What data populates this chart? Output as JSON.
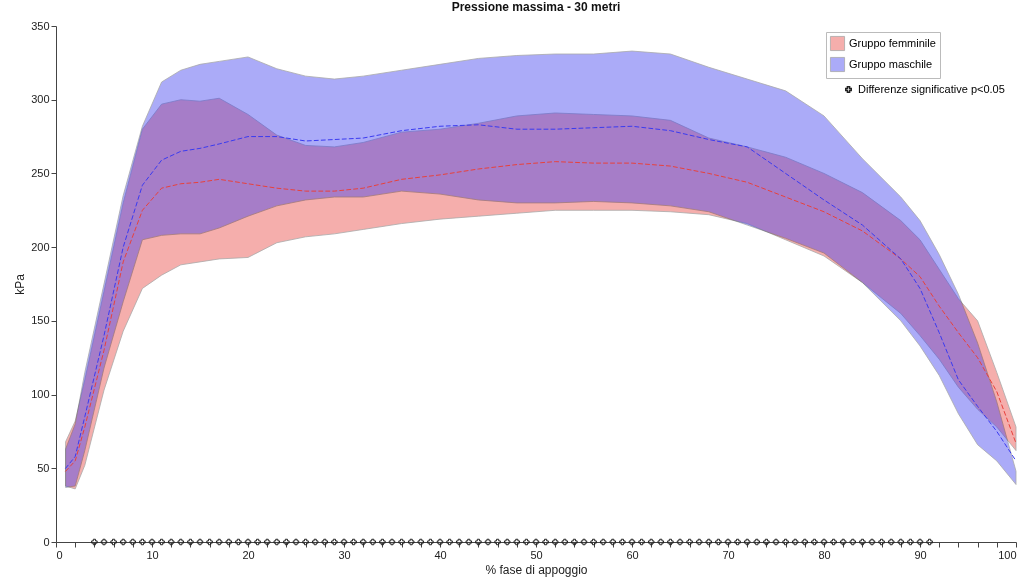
{
  "chart_data": {
    "type": "line",
    "title": "Pressione massima - 30 metri",
    "xlabel": "% fase di appoggio",
    "ylabel": "kPa",
    "x": [
      1,
      2,
      3,
      5,
      7,
      9,
      11,
      13,
      15,
      17,
      20,
      23,
      26,
      29,
      32,
      36,
      40,
      44,
      48,
      52,
      56,
      60,
      64,
      68,
      72,
      76,
      80,
      84,
      88,
      90,
      92,
      94,
      96,
      98,
      100
    ],
    "series": [
      {
        "name": "Gruppo femminile",
        "color": "#e8413c",
        "line_style": "dashed",
        "values": [
          48,
          55,
          78,
          130,
          190,
          225,
          240,
          243,
          244,
          246,
          243,
          240,
          238,
          238,
          240,
          246,
          249,
          253,
          256,
          258,
          257,
          257,
          255,
          250,
          244,
          234,
          224,
          211,
          192,
          180,
          160,
          142,
          125,
          102,
          67
        ],
        "lower": [
          38,
          36,
          52,
          103,
          143,
          172,
          181,
          188,
          190,
          192,
          193,
          203,
          207,
          209,
          212,
          216,
          219,
          221,
          223,
          225,
          225,
          225,
          224,
          222,
          216,
          205,
          194,
          176,
          155,
          140,
          124,
          105,
          90,
          78,
          62
        ],
        "upper": [
          68,
          82,
          110,
          170,
          230,
          280,
          297,
          300,
          299,
          301,
          290,
          276,
          269,
          268,
          271,
          278,
          280,
          284,
          289,
          291,
          290,
          289,
          286,
          274,
          268,
          261,
          250,
          237,
          218,
          205,
          185,
          165,
          150,
          115,
          78
        ]
      },
      {
        "name": "Gruppo maschile",
        "color": "#3a3af0",
        "line_style": "dashed",
        "values": [
          50,
          58,
          85,
          140,
          200,
          242,
          259,
          265,
          267,
          270,
          275,
          275,
          272,
          273,
          274,
          279,
          282,
          283,
          280,
          280,
          281,
          282,
          279,
          273,
          268,
          250,
          232,
          215,
          192,
          172,
          142,
          110,
          92,
          75,
          55
        ],
        "lower": [
          37,
          38,
          62,
          118,
          163,
          205,
          208,
          209,
          209,
          213,
          221,
          228,
          232,
          234,
          234,
          238,
          236,
          232,
          230,
          230,
          231,
          230,
          228,
          224,
          215,
          206,
          196,
          176,
          150,
          133,
          113,
          87,
          66,
          55,
          39
        ],
        "upper": [
          63,
          80,
          115,
          175,
          235,
          282,
          312,
          320,
          324,
          326,
          329,
          321,
          316,
          314,
          316,
          320,
          324,
          328,
          330,
          331,
          331,
          333,
          331,
          322,
          314,
          306,
          289,
          260,
          234,
          218,
          195,
          168,
          135,
          95,
          48
        ]
      },
      {
        "name": "Differenze significative p<0.05",
        "type": "scatter",
        "color": "#222222",
        "marker": "cross",
        "x": [
          4,
          5,
          6,
          7,
          8,
          9,
          10,
          11,
          12,
          13,
          14,
          15,
          16,
          17,
          18,
          19,
          20,
          21,
          22,
          23,
          24,
          25,
          26,
          27,
          28,
          29,
          30,
          31,
          32,
          33,
          34,
          35,
          36,
          37,
          38,
          39,
          40,
          41,
          42,
          43,
          44,
          45,
          46,
          47,
          48,
          49,
          50,
          51,
          52,
          53,
          54,
          55,
          56,
          57,
          58,
          59,
          60,
          61,
          62,
          63,
          64,
          65,
          66,
          67,
          68,
          69,
          70,
          71,
          72,
          73,
          74,
          75,
          76,
          77,
          78,
          79,
          80,
          81,
          82,
          83,
          84,
          85,
          86,
          87,
          88,
          89,
          90,
          91
        ],
        "values": [
          0,
          0,
          0,
          0,
          0,
          0,
          0,
          0,
          0,
          0,
          0,
          0,
          0,
          0,
          0,
          0,
          0,
          0,
          0,
          0,
          0,
          0,
          0,
          0,
          0,
          0,
          0,
          0,
          0,
          0,
          0,
          0,
          0,
          0,
          0,
          0,
          0,
          0,
          0,
          0,
          0,
          0,
          0,
          0,
          0,
          0,
          0,
          0,
          0,
          0,
          0,
          0,
          0,
          0,
          0,
          0,
          0,
          0,
          0,
          0,
          0,
          0,
          0,
          0,
          0,
          0,
          0,
          0,
          0,
          0,
          0,
          0,
          0,
          0,
          0,
          0,
          0,
          0,
          0,
          0,
          0,
          0,
          0,
          0,
          0,
          0,
          0,
          0
        ]
      }
    ],
    "xlim": [
      0,
      100
    ],
    "xticks": [
      0,
      {
        "value": 2,
        "label": null
      },
      {
        "value": 4,
        "label": null
      },
      {
        "value": 6,
        "label": null
      },
      {
        "value": 8,
        "label": null
      },
      10,
      {
        "value": 12,
        "label": null
      },
      {
        "value": 14,
        "label": null
      },
      {
        "value": 16,
        "label": null
      },
      {
        "value": 18,
        "label": null
      },
      20,
      {
        "value": 22,
        "label": null
      },
      {
        "value": 24,
        "label": null
      },
      {
        "value": 26,
        "label": null
      },
      {
        "value": 28,
        "label": null
      },
      30,
      {
        "value": 32,
        "label": null
      },
      {
        "value": 34,
        "label": null
      },
      {
        "value": 36,
        "label": null
      },
      {
        "value": 38,
        "label": null
      },
      40,
      {
        "value": 42,
        "label": null
      },
      {
        "value": 44,
        "label": null
      },
      {
        "value": 46,
        "label": null
      },
      {
        "value": 48,
        "label": null
      },
      50,
      {
        "value": 52,
        "label": null
      },
      {
        "value": 54,
        "label": null
      },
      {
        "value": 56,
        "label": null
      },
      {
        "value": 58,
        "label": null
      },
      60,
      {
        "value": 62,
        "label": null
      },
      {
        "value": 64,
        "label": null
      },
      {
        "value": 66,
        "label": null
      },
      {
        "value": 68,
        "label": null
      },
      70,
      {
        "value": 72,
        "label": null
      },
      {
        "value": 74,
        "label": null
      },
      {
        "value": 76,
        "label": null
      },
      {
        "value": 78,
        "label": null
      },
      80,
      {
        "value": 82,
        "label": null
      },
      {
        "value": 84,
        "label": null
      },
      {
        "value": 86,
        "label": null
      },
      {
        "value": 88,
        "label": null
      },
      90,
      {
        "value": 92,
        "label": null
      },
      {
        "value": 94,
        "label": null
      },
      {
        "value": 96,
        "label": null
      },
      {
        "value": 98,
        "label": null
      },
      100
    ],
    "ylim": [
      0,
      350
    ],
    "yticks": [
      0,
      50,
      100,
      150,
      200,
      250,
      300,
      350
    ],
    "legend": "top right"
  }
}
